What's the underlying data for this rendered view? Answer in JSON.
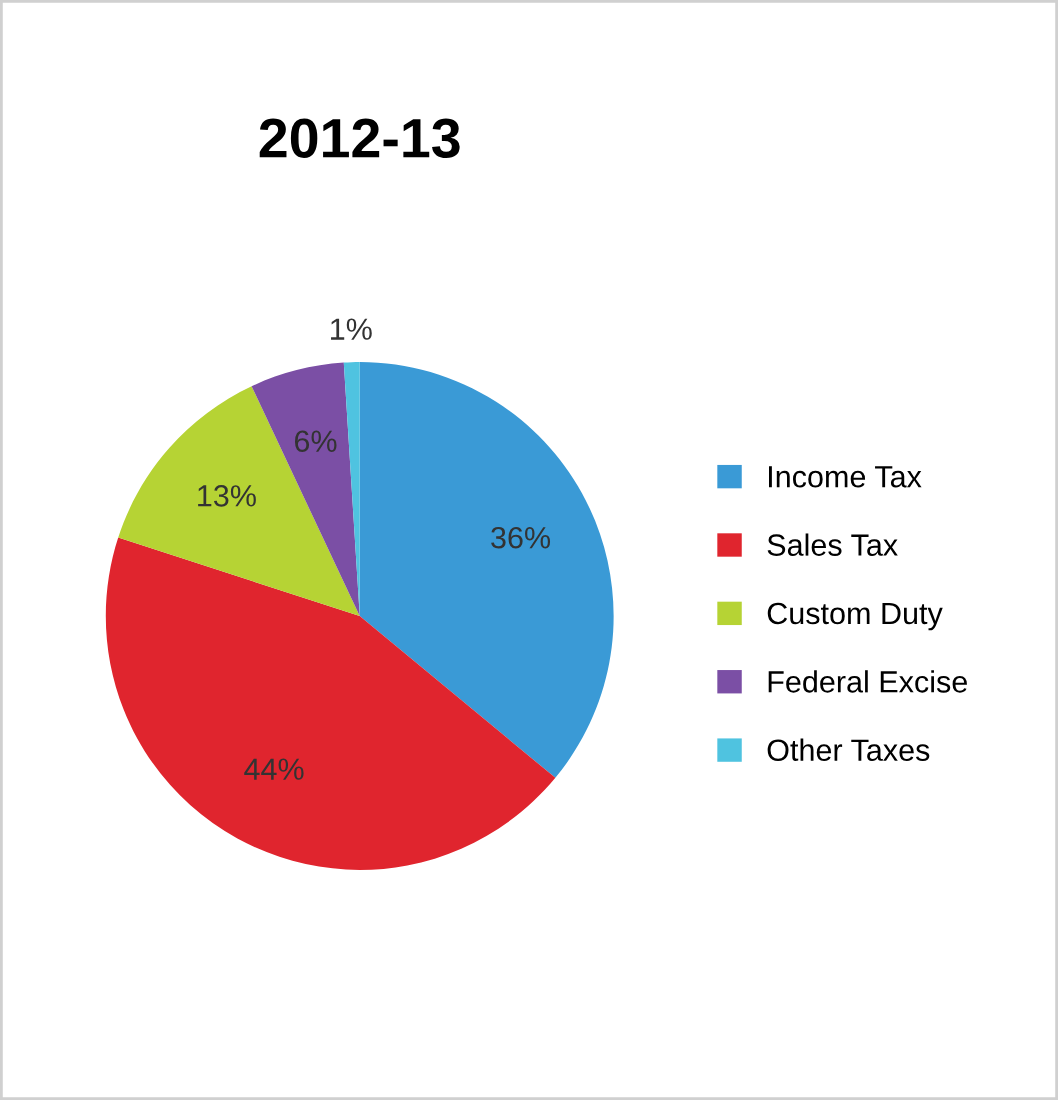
{
  "chart_data": {
    "type": "pie",
    "title": "2012-13",
    "categories": [
      "Income Tax",
      "Sales Tax",
      "Custom Duty",
      "Federal Excise",
      "Other Taxes"
    ],
    "values": [
      36,
      44,
      13,
      6,
      1
    ],
    "colors": [
      "#3a9ad6",
      "#e0252e",
      "#b6d334",
      "#7b4fa5",
      "#4fc3e0"
    ],
    "value_labels": [
      "36%",
      "44%",
      "13%",
      "6%",
      "1%"
    ],
    "legend": "right"
  }
}
